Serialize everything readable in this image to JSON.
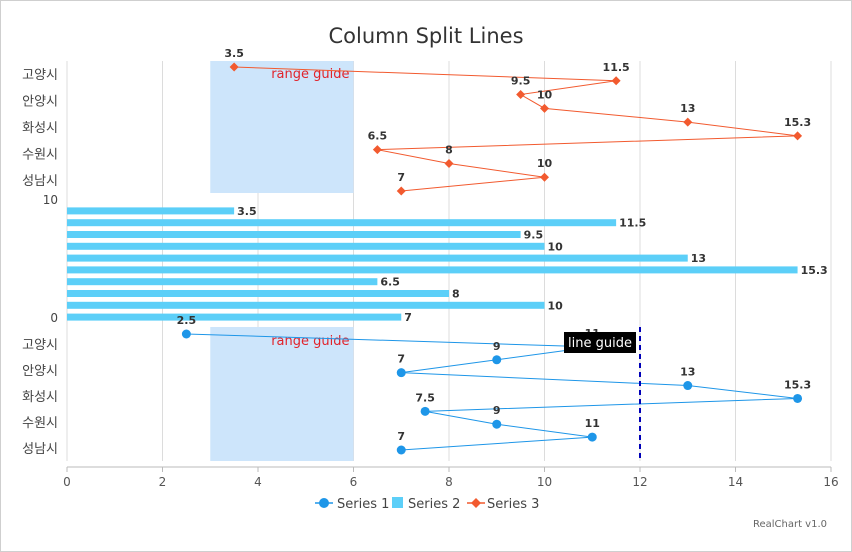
{
  "chart_data": {
    "type": "line",
    "title": "Column Split Lines",
    "credit": "RealChart v1.0",
    "colors": {
      "series1": "#1e96e8",
      "series2": "#5ccff8",
      "series3": "#f25a2f",
      "range_fill": "#cde5fb",
      "range_text": "#e0242c",
      "line_guide": "#0000b8",
      "grid": "#dcdcdc"
    },
    "x_axis": {
      "min": 0,
      "max": 16,
      "ticks": [
        0,
        2,
        4,
        6,
        8,
        10,
        12,
        14,
        16
      ]
    },
    "categories": [
      "고양시",
      "안양시",
      "화성시",
      "수원시",
      "성남시"
    ],
    "legend": {
      "position": "bottom",
      "items": [
        "Series 1",
        "Series 2",
        "Series 3"
      ]
    },
    "panes": {
      "series3": {
        "categories": [
          "고양시",
          "안양시",
          "화성시",
          "수원시",
          "성남시"
        ],
        "points": [
          {
            "x": 3.5,
            "label": "3.5"
          },
          {
            "x": 11.5,
            "label": "11.5"
          },
          {
            "x": 9.5,
            "label": "9.5"
          },
          {
            "x": 10,
            "label": "10"
          },
          {
            "x": 13,
            "label": "13"
          },
          {
            "x": 15.3,
            "label": "15.3"
          },
          {
            "x": 6.5,
            "label": "6.5"
          },
          {
            "x": 8,
            "label": "8"
          },
          {
            "x": 10,
            "label": "10"
          },
          {
            "x": 7,
            "label": "7"
          }
        ],
        "range_guide": {
          "from": 3,
          "to": 6,
          "label": "range guide"
        }
      },
      "series2": {
        "y_ticks": [
          "10",
          "0"
        ],
        "values": [
          3.5,
          11.5,
          9.5,
          10,
          13,
          15.3,
          6.5,
          8,
          10,
          7
        ],
        "labels": [
          "3.5",
          "11.5",
          "9.5",
          "10",
          "13",
          "15.3",
          "6.5",
          "8",
          "10",
          "7"
        ]
      },
      "series1": {
        "categories": [
          "고양시",
          "안양시",
          "화성시",
          "수원시",
          "성남시"
        ],
        "points": [
          {
            "x": 2.5,
            "label": "2.5"
          },
          {
            "x": 11,
            "label": "11"
          },
          {
            "x": 9,
            "label": "9"
          },
          {
            "x": 7,
            "label": "7"
          },
          {
            "x": 13,
            "label": "13"
          },
          {
            "x": 15.3,
            "label": "15.3"
          },
          {
            "x": 7.5,
            "label": "7.5"
          },
          {
            "x": 9,
            "label": "9"
          },
          {
            "x": 11,
            "label": "11"
          },
          {
            "x": 7,
            "label": "7"
          }
        ],
        "range_guide": {
          "from": 3,
          "to": 6,
          "label": "range guide"
        },
        "line_guide": {
          "value": 12,
          "label": "line guide"
        }
      }
    }
  }
}
